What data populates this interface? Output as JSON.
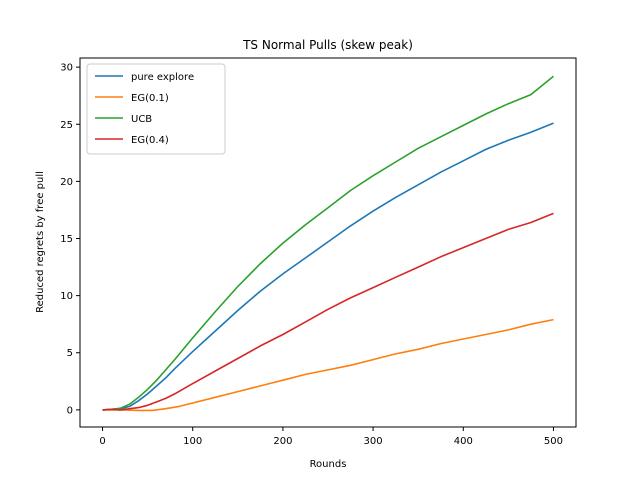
{
  "chart_data": {
    "type": "line",
    "title": "TS Normal Pulls (skew peak)",
    "xlabel": "Rounds",
    "ylabel": "Reduced regrets by free pull",
    "xlim": [
      -25,
      525
    ],
    "ylim": [
      -1.5,
      30.8
    ],
    "xticks": [
      "0",
      "100",
      "200",
      "300",
      "400",
      "500"
    ],
    "yticks": [
      "0",
      "5",
      "10",
      "15",
      "20",
      "25",
      "30"
    ],
    "grid": false,
    "legend_position": "top-left",
    "series": [
      {
        "name": "pure explore",
        "color": "#1f77b4",
        "x": [
          0,
          10,
          20,
          30,
          40,
          50,
          60,
          70,
          80,
          100,
          125,
          150,
          175,
          200,
          225,
          250,
          275,
          300,
          325,
          350,
          375,
          400,
          425,
          450,
          475,
          500
        ],
        "y": [
          0,
          0.05,
          0.1,
          0.3,
          0.8,
          1.4,
          2.1,
          2.8,
          3.6,
          5.1,
          6.9,
          8.7,
          10.4,
          11.9,
          13.3,
          14.7,
          16.1,
          17.4,
          18.6,
          19.7,
          20.8,
          21.8,
          22.8,
          23.6,
          24.3,
          25.1
        ]
      },
      {
        "name": "EG(0.1)",
        "color": "#ff7f0e",
        "x": [
          0,
          20,
          40,
          55,
          70,
          85,
          100,
          125,
          150,
          175,
          200,
          225,
          250,
          275,
          300,
          325,
          350,
          375,
          400,
          425,
          450,
          475,
          500
        ],
        "y": [
          0,
          0,
          -0.05,
          -0.05,
          0.1,
          0.3,
          0.6,
          1.1,
          1.6,
          2.1,
          2.6,
          3.1,
          3.5,
          3.9,
          4.4,
          4.9,
          5.3,
          5.8,
          6.2,
          6.6,
          7.0,
          7.5,
          7.9
        ]
      },
      {
        "name": "UCB",
        "color": "#2ca02c",
        "x": [
          0,
          10,
          20,
          30,
          40,
          50,
          60,
          70,
          80,
          100,
          125,
          150,
          175,
          200,
          225,
          250,
          275,
          300,
          325,
          350,
          375,
          400,
          425,
          450,
          475,
          500
        ],
        "y": [
          0,
          0.05,
          0.15,
          0.5,
          1.1,
          1.8,
          2.6,
          3.5,
          4.4,
          6.3,
          8.6,
          10.8,
          12.8,
          14.6,
          16.2,
          17.7,
          19.2,
          20.5,
          21.7,
          22.9,
          23.9,
          24.9,
          25.9,
          26.8,
          27.6,
          29.2
        ]
      },
      {
        "name": "EG(0.4)",
        "color": "#d62728",
        "x": [
          0,
          10,
          20,
          30,
          40,
          50,
          60,
          70,
          80,
          100,
          125,
          150,
          175,
          200,
          225,
          250,
          275,
          300,
          325,
          350,
          375,
          400,
          425,
          450,
          475,
          500
        ],
        "y": [
          0,
          0.05,
          0,
          0.1,
          0.2,
          0.4,
          0.7,
          1.0,
          1.4,
          2.3,
          3.4,
          4.5,
          5.6,
          6.6,
          7.7,
          8.8,
          9.8,
          10.7,
          11.6,
          12.5,
          13.4,
          14.2,
          15.0,
          15.8,
          16.4,
          17.2
        ]
      }
    ]
  }
}
